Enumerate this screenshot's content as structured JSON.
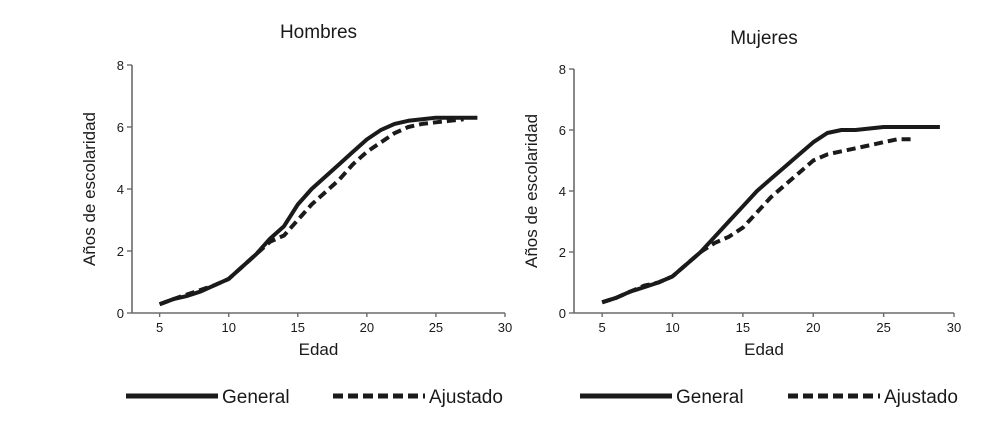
{
  "chart_data": [
    {
      "type": "line",
      "title": "Hombres",
      "xlabel": "Edad",
      "ylabel": "Años de escolaridad",
      "xlim": [
        3,
        30
      ],
      "ylim": [
        0,
        8
      ],
      "x_ticks": [
        "5",
        "10",
        "15",
        "20",
        "25",
        "30"
      ],
      "y_ticks": [
        "0",
        "2",
        "4",
        "6",
        "8"
      ],
      "grid": false,
      "legend_position": "bottom",
      "series": [
        {
          "name": "General",
          "style": "solid",
          "color": "#1a1a1a",
          "x": [
            5,
            6,
            7,
            8,
            9,
            10,
            11,
            12,
            13,
            14,
            15,
            16,
            17,
            18,
            19,
            20,
            21,
            22,
            23,
            24,
            25,
            26,
            27,
            28
          ],
          "y": [
            0.28,
            0.45,
            0.55,
            0.7,
            0.9,
            1.1,
            1.5,
            1.9,
            2.4,
            2.8,
            3.5,
            4.0,
            4.4,
            4.8,
            5.2,
            5.6,
            5.9,
            6.1,
            6.2,
            6.25,
            6.3,
            6.3,
            6.3,
            6.3
          ]
        },
        {
          "name": "Ajustado",
          "style": "dashed",
          "color": "#1a1a1a",
          "x": [
            5,
            6,
            7,
            8,
            9,
            10,
            11,
            12,
            13,
            14,
            15,
            16,
            17,
            18,
            19,
            20,
            21,
            22,
            23,
            24,
            25,
            26,
            27
          ],
          "y": [
            0.28,
            0.45,
            0.6,
            0.75,
            0.9,
            1.1,
            1.5,
            1.9,
            2.3,
            2.5,
            3.0,
            3.5,
            3.9,
            4.3,
            4.8,
            5.2,
            5.5,
            5.8,
            6.0,
            6.1,
            6.15,
            6.2,
            6.25
          ]
        }
      ]
    },
    {
      "type": "line",
      "title": "Mujeres",
      "xlabel": "Edad",
      "ylabel": "Años de escolaridad",
      "xlim": [
        3,
        30
      ],
      "ylim": [
        0,
        8
      ],
      "x_ticks": [
        "5",
        "10",
        "15",
        "20",
        "25",
        "30"
      ],
      "y_ticks": [
        "0",
        "2",
        "4",
        "6",
        "8"
      ],
      "grid": false,
      "legend_position": "bottom",
      "series": [
        {
          "name": "General",
          "style": "solid",
          "color": "#1a1a1a",
          "x": [
            5,
            6,
            7,
            8,
            9,
            10,
            11,
            12,
            13,
            14,
            15,
            16,
            17,
            18,
            19,
            20,
            21,
            22,
            23,
            24,
            25,
            26,
            27,
            28,
            29
          ],
          "y": [
            0.35,
            0.5,
            0.7,
            0.85,
            1.0,
            1.2,
            1.6,
            2.0,
            2.5,
            3.0,
            3.5,
            4.0,
            4.4,
            4.8,
            5.2,
            5.6,
            5.9,
            6.0,
            6.0,
            6.05,
            6.1,
            6.1,
            6.1,
            6.1,
            6.1
          ]
        },
        {
          "name": "Ajustado",
          "style": "dashed",
          "color": "#1a1a1a",
          "x": [
            5,
            6,
            7,
            8,
            9,
            10,
            11,
            12,
            13,
            14,
            15,
            16,
            17,
            18,
            19,
            20,
            21,
            22,
            23,
            24,
            25,
            26,
            27
          ],
          "y": [
            0.35,
            0.5,
            0.7,
            0.9,
            1.0,
            1.2,
            1.6,
            2.0,
            2.3,
            2.5,
            2.8,
            3.3,
            3.8,
            4.2,
            4.6,
            5.0,
            5.2,
            5.3,
            5.4,
            5.5,
            5.6,
            5.7,
            5.7
          ]
        }
      ]
    }
  ]
}
